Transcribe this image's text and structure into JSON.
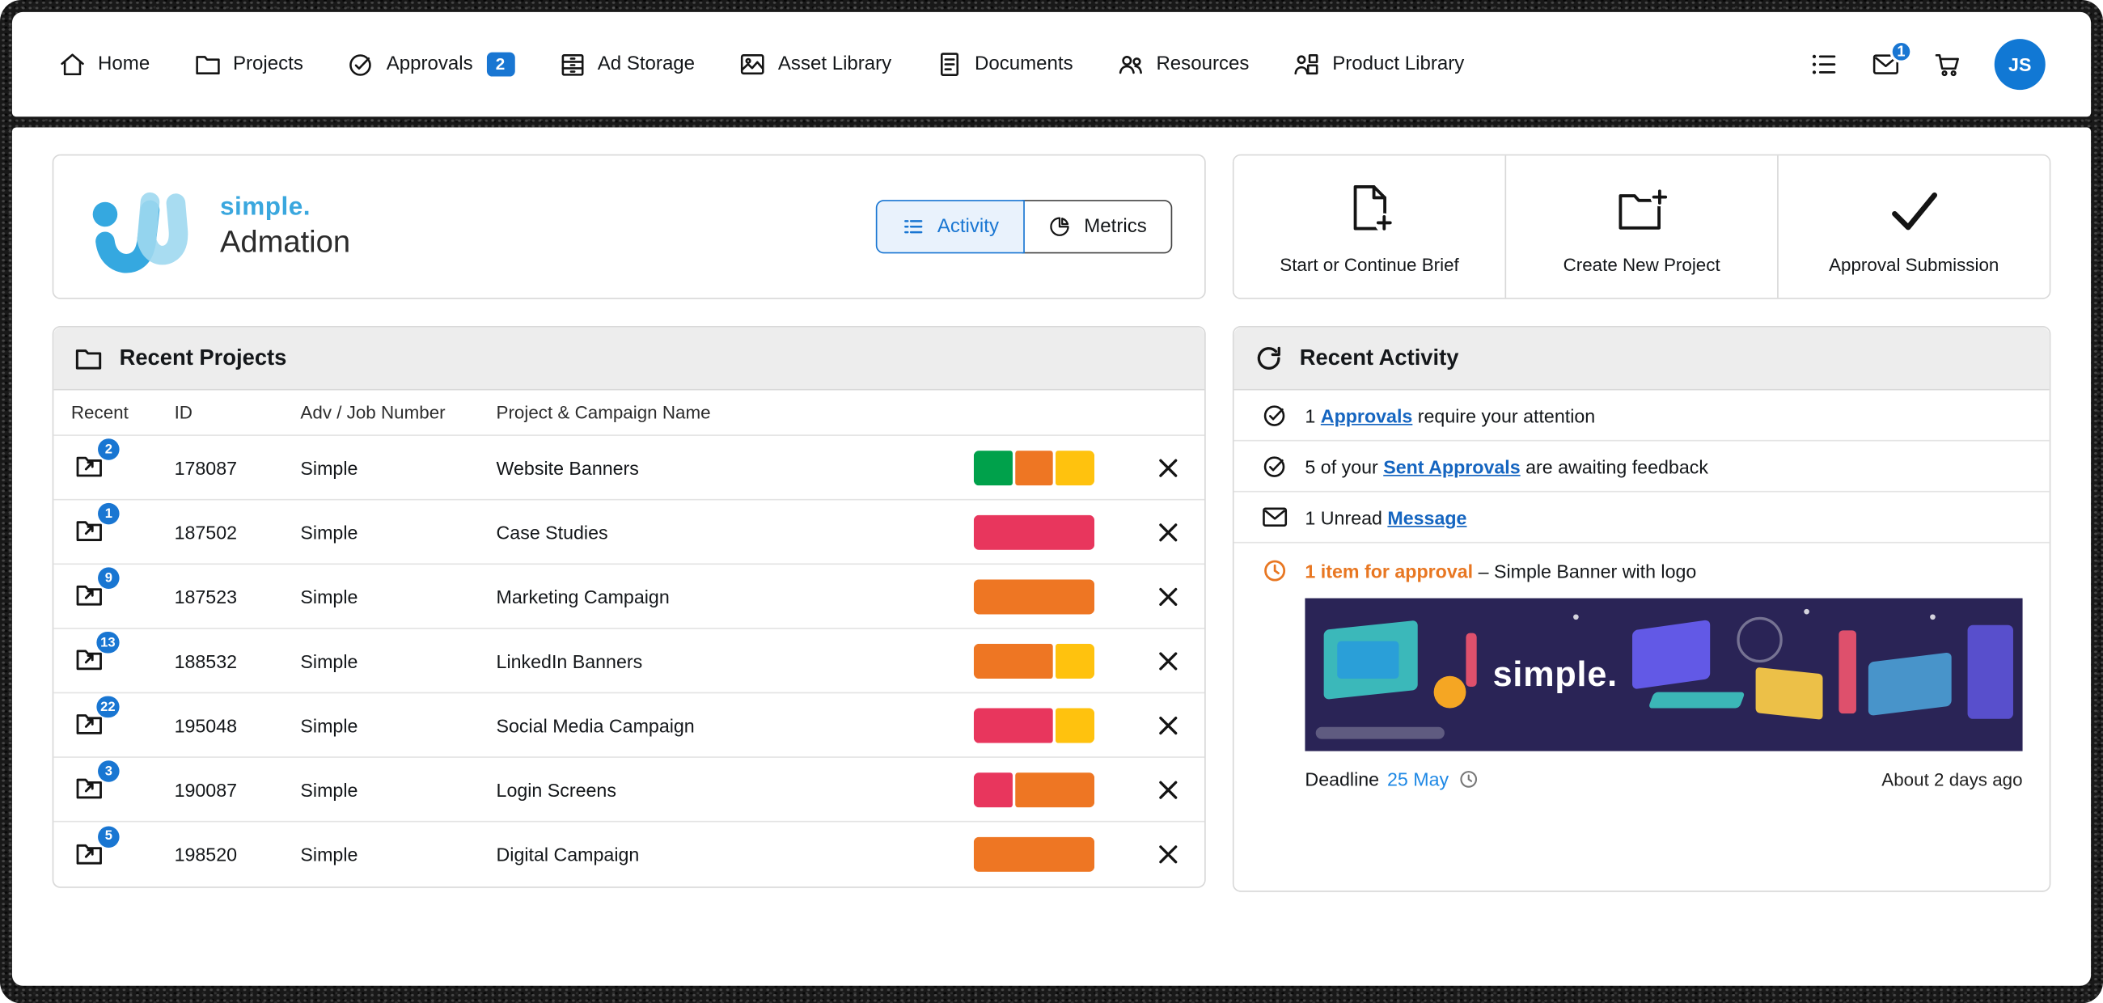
{
  "nav": {
    "items": [
      {
        "label": "Home"
      },
      {
        "label": "Projects"
      },
      {
        "label": "Approvals",
        "badge": "2"
      },
      {
        "label": "Ad Storage"
      },
      {
        "label": "Asset Library"
      },
      {
        "label": "Documents"
      },
      {
        "label": "Resources"
      },
      {
        "label": "Product Library"
      }
    ],
    "mail_badge": "1",
    "avatar_initials": "JS"
  },
  "brand": {
    "logo_text": "simple.",
    "app_name": "Admation",
    "view_tabs": {
      "activity": "Activity",
      "metrics": "Metrics"
    }
  },
  "quick_actions": {
    "brief": "Start or Continue Brief",
    "project": "Create New Project",
    "approval": "Approval Submission"
  },
  "recent_projects": {
    "title": "Recent Projects",
    "columns": {
      "recent": "Recent",
      "id": "ID",
      "adv": "Adv / Job Number",
      "name": "Project & Campaign Name"
    },
    "rows": [
      {
        "badge": "2",
        "id": "178087",
        "adv": "Simple",
        "name": "Website Banners",
        "bar": [
          {
            "color": "#00A14B",
            "w": 1
          },
          {
            "color": "#EE7623",
            "w": 1
          },
          {
            "color": "#FFC20E",
            "w": 1
          }
        ]
      },
      {
        "badge": "1",
        "id": "187502",
        "adv": "Simple",
        "name": "Case Studies",
        "bar": [
          {
            "color": "#E8365D",
            "w": 1
          }
        ]
      },
      {
        "badge": "9",
        "id": "187523",
        "adv": "Simple",
        "name": "Marketing Campaign",
        "bar": [
          {
            "color": "#EE7623",
            "w": 1
          }
        ]
      },
      {
        "badge": "13",
        "id": "188532",
        "adv": "Simple",
        "name": "LinkedIn Banners",
        "bar": [
          {
            "color": "#EE7623",
            "w": 2
          },
          {
            "color": "#FFC20E",
            "w": 1
          }
        ]
      },
      {
        "badge": "22",
        "id": "195048",
        "adv": "Simple",
        "name": "Social Media Campaign",
        "bar": [
          {
            "color": "#E8365D",
            "w": 2
          },
          {
            "color": "#FFC20E",
            "w": 1
          }
        ]
      },
      {
        "badge": "3",
        "id": "190087",
        "adv": "Simple",
        "name": "Login Screens",
        "bar": [
          {
            "color": "#E8365D",
            "w": 1
          },
          {
            "color": "#EE7623",
            "w": 2
          }
        ]
      },
      {
        "badge": "5",
        "id": "198520",
        "adv": "Simple",
        "name": "Digital Campaign",
        "bar": [
          {
            "color": "#EE7623",
            "w": 1
          }
        ]
      }
    ]
  },
  "recent_activity": {
    "title": "Recent Activity",
    "items": [
      {
        "prefix": "1 ",
        "link": "Approvals",
        "suffix": " require your attention"
      },
      {
        "prefix": "5 of your ",
        "link": "Sent Approvals",
        "suffix": " are awaiting feedback"
      },
      {
        "prefix": "1 Unread ",
        "link": "Message",
        "suffix": ""
      }
    ],
    "approval_item": {
      "highlight": "1 item for approval",
      "separator": " – ",
      "text": "Simple Banner with logo"
    },
    "banner_brand": "simple.",
    "deadline_label": "Deadline",
    "deadline_date": "25 May",
    "time_ago": "About 2 days ago"
  },
  "colors": {
    "accent_blue": "#1976D2",
    "link_blue": "#1565C0",
    "highlight_orange": "#E87722",
    "bar_green": "#00A14B",
    "bar_orange": "#EE7623",
    "bar_yellow": "#FFC20E",
    "bar_red": "#E8365D"
  }
}
